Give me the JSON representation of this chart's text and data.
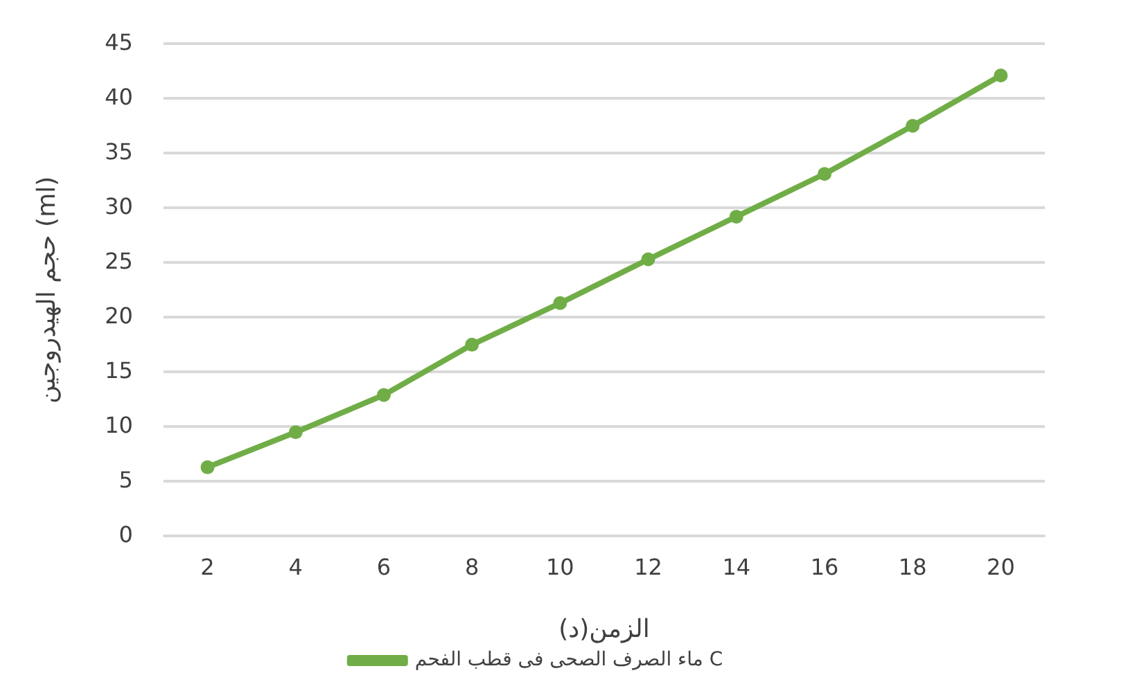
{
  "chart_data": {
    "type": "line",
    "xlabel": "الزمن(د)",
    "ylabel": "حجم الهيدروجين (ml)",
    "categories": [
      "2",
      "4",
      "6",
      "8",
      "10",
      "12",
      "14",
      "16",
      "18",
      "20"
    ],
    "series": [
      {
        "name": "ماء الصرف الصحى فى قطب الفحم C",
        "color": "#70ad47",
        "values": [
          6.3,
          9.5,
          12.9,
          17.5,
          21.3,
          25.3,
          29.2,
          33.1,
          37.5,
          42.1
        ]
      }
    ],
    "ylim": [
      0,
      45
    ],
    "yticks": [
      0,
      5,
      10,
      15,
      20,
      25,
      30,
      35,
      40,
      45
    ],
    "grid": "y",
    "legend": "bottom",
    "marker": "circle",
    "line_style": "solid"
  }
}
